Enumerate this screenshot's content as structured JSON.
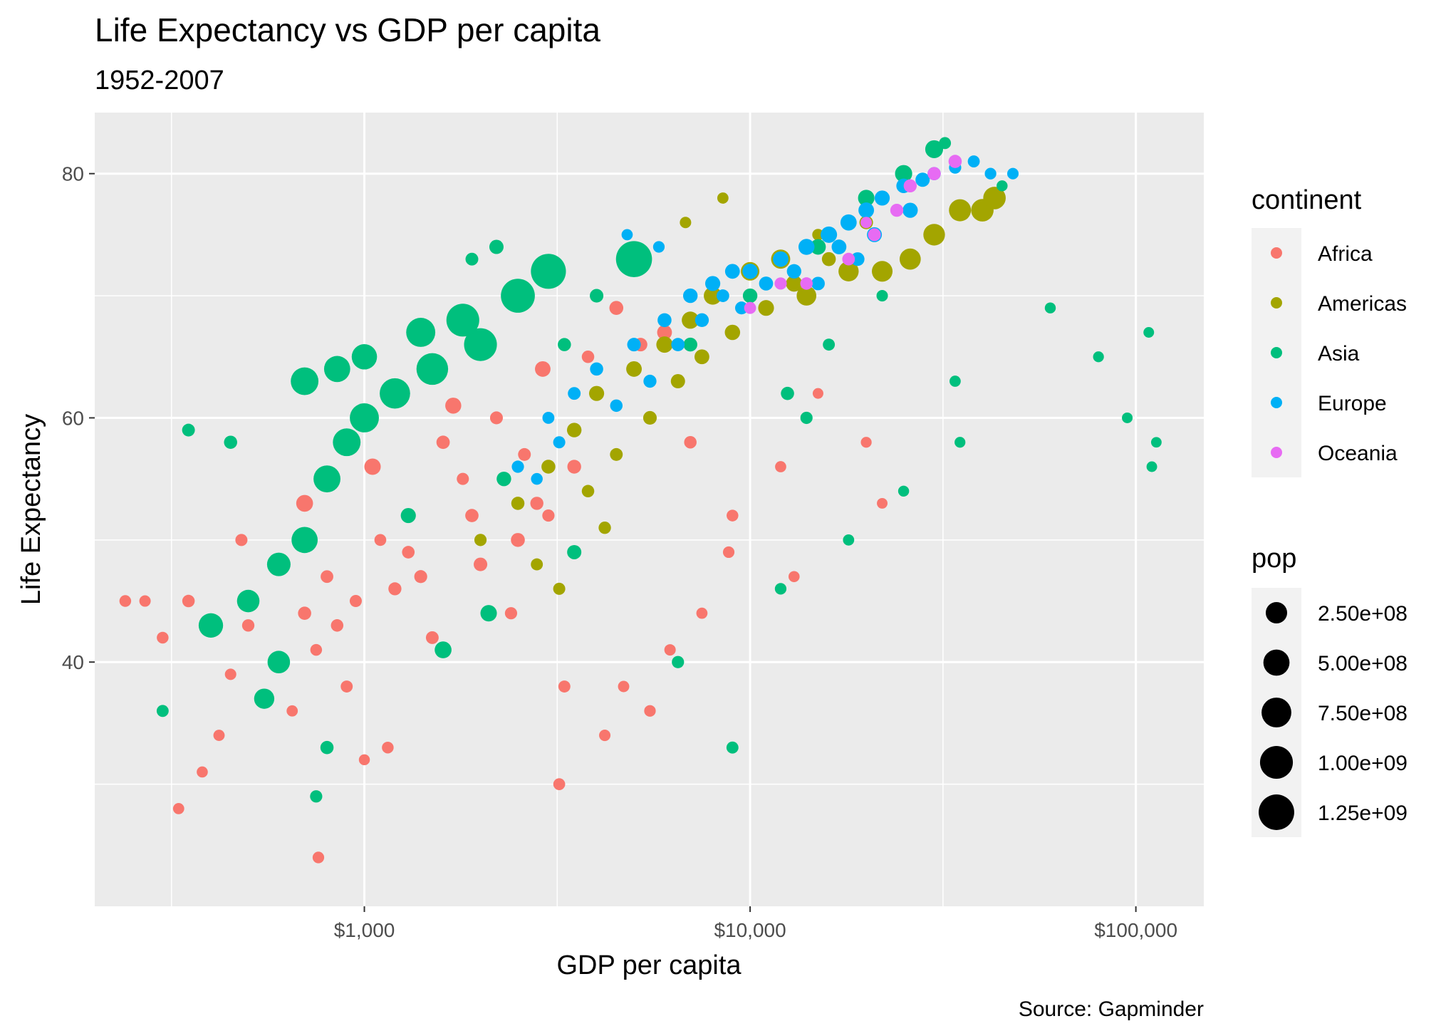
{
  "chart_data": {
    "type": "scatter",
    "title": "Life Expectancy vs GDP per capita",
    "subtitle": "1952-2007",
    "xlabel": "GDP per capita",
    "ylabel": "Life Expectancy",
    "caption": "Source: Gapminder",
    "x_scale": "log10",
    "xlim": [
      200,
      150000
    ],
    "ylim": [
      20,
      85
    ],
    "x_ticks": [
      {
        "value": 1000,
        "label": "$1,000"
      },
      {
        "value": 10000,
        "label": "$10,000"
      },
      {
        "value": 100000,
        "label": "$100,000"
      }
    ],
    "y_ticks": [
      {
        "value": 40,
        "label": "40"
      },
      {
        "value": 60,
        "label": "60"
      },
      {
        "value": 80,
        "label": "80"
      }
    ],
    "grid": true,
    "panel_background": "#ebebeb",
    "legend_position": "right",
    "color_legend": {
      "title": "continent",
      "entries": [
        {
          "name": "Africa",
          "color": "#F8766D"
        },
        {
          "name": "Americas",
          "color": "#A3A500"
        },
        {
          "name": "Asia",
          "color": "#00BF7D"
        },
        {
          "name": "Europe",
          "color": "#00B0F6"
        },
        {
          "name": "Oceania",
          "color": "#E76BF3"
        }
      ]
    },
    "size_legend": {
      "title": "pop",
      "entries": [
        {
          "label": "2.50e+08",
          "value": 250000000
        },
        {
          "label": "5.00e+08",
          "value": 500000000
        },
        {
          "label": "7.50e+08",
          "value": 750000000
        },
        {
          "label": "1.00e+09",
          "value": 1000000000
        },
        {
          "label": "1.25e+09",
          "value": 1250000000
        }
      ]
    },
    "series": [
      {
        "name": "Africa",
        "points": [
          [
            1500,
            42.0,
            15000000
          ],
          [
            900,
            38.0,
            8000000
          ],
          [
            600,
            40.0,
            5000000
          ],
          [
            350,
            45.0,
            12000000
          ],
          [
            300,
            42.0,
            6000000
          ],
          [
            700,
            44.0,
            20000000
          ],
          [
            1200,
            46.0,
            18000000
          ],
          [
            2000,
            48.0,
            25000000
          ],
          [
            2500,
            50.0,
            30000000
          ],
          [
            3000,
            52.0,
            10000000
          ],
          [
            1800,
            55.0,
            9000000
          ],
          [
            1100,
            50.0,
            7000000
          ],
          [
            800,
            47.0,
            14000000
          ],
          [
            500,
            43.0,
            11000000
          ],
          [
            450,
            39.0,
            4000000
          ],
          [
            650,
            36.0,
            3000000
          ],
          [
            1600,
            58.0,
            22000000
          ],
          [
            2200,
            60.0,
            16000000
          ],
          [
            4000,
            62.0,
            35000000
          ],
          [
            5000,
            64.0,
            40000000
          ],
          [
            7000,
            58.0,
            12000000
          ],
          [
            9000,
            52.0,
            6000000
          ],
          [
            12000,
            56.0,
            3000000
          ],
          [
            15000,
            62.0,
            1000000
          ],
          [
            20000,
            58.0,
            1500000
          ],
          [
            3500,
            56.0,
            28000000
          ],
          [
            2800,
            53.0,
            19000000
          ],
          [
            1300,
            49.0,
            13000000
          ],
          [
            950,
            45.0,
            9000000
          ],
          [
            750,
            41.0,
            6000000
          ],
          [
            550,
            37.0,
            5000000
          ],
          [
            420,
            34.0,
            3500000
          ],
          [
            380,
            31.0,
            2500000
          ],
          [
            1000,
            32.0,
            2000000
          ],
          [
            3200,
            30.0,
            7000000
          ],
          [
            4200,
            34.0,
            4000000
          ],
          [
            5500,
            36.0,
            5000000
          ],
          [
            7500,
            44.0,
            3000000
          ],
          [
            8800,
            49.0,
            4500000
          ],
          [
            13000,
            47.0,
            2500000
          ],
          [
            18000,
            50.0,
            1200000
          ],
          [
            22000,
            53.0,
            900000
          ],
          [
            2600,
            57.0,
            15000000
          ],
          [
            1900,
            52.0,
            21000000
          ],
          [
            1400,
            47.0,
            17000000
          ],
          [
            850,
            43.0,
            12000000
          ],
          [
            620,
            48.0,
            10000000
          ],
          [
            480,
            50.0,
            9000000
          ],
          [
            270,
            45.0,
            4000000
          ],
          [
            240,
            45.0,
            6000000
          ],
          [
            3800,
            65.0,
            12000000
          ],
          [
            4500,
            69.0,
            30000000
          ],
          [
            6000,
            67.0,
            45000000
          ],
          [
            5200,
            66.0,
            25000000
          ],
          [
            2900,
            64.0,
            60000000
          ],
          [
            1700,
            61.0,
            70000000
          ],
          [
            1050,
            56.0,
            80000000
          ],
          [
            700,
            53.0,
            90000000
          ],
          [
            2400,
            44.0,
            10000000
          ],
          [
            3300,
            38.0,
            8000000
          ],
          [
            760,
            24.0,
            5000000
          ],
          [
            330,
            28.0,
            3000000
          ],
          [
            1150,
            33.0,
            6000000
          ],
          [
            4700,
            38.0,
            3500000
          ],
          [
            6200,
            41.0,
            4000000
          ]
        ]
      },
      {
        "name": "Americas",
        "points": [
          [
            2000,
            50.0,
            10000000
          ],
          [
            2500,
            53.0,
            20000000
          ],
          [
            3000,
            56.0,
            30000000
          ],
          [
            3500,
            59.0,
            40000000
          ],
          [
            4000,
            62.0,
            50000000
          ],
          [
            5000,
            64.0,
            60000000
          ],
          [
            6000,
            66.0,
            80000000
          ],
          [
            7000,
            68.0,
            100000000
          ],
          [
            8000,
            70.0,
            120000000
          ],
          [
            10000,
            72.0,
            140000000
          ],
          [
            12000,
            73.0,
            160000000
          ],
          [
            14000,
            70.0,
            180000000
          ],
          [
            18000,
            72.0,
            200000000
          ],
          [
            22000,
            72.0,
            220000000
          ],
          [
            26000,
            73.0,
            240000000
          ],
          [
            30000,
            75.0,
            260000000
          ],
          [
            35000,
            77.0,
            280000000
          ],
          [
            40000,
            77.0,
            300000000
          ],
          [
            43000,
            78.0,
            301000000
          ],
          [
            4500,
            57.0,
            15000000
          ],
          [
            3800,
            54.0,
            12000000
          ],
          [
            2800,
            48.0,
            8000000
          ],
          [
            5500,
            60.0,
            25000000
          ],
          [
            6500,
            63.0,
            35000000
          ],
          [
            7500,
            65.0,
            45000000
          ],
          [
            9000,
            67.0,
            55000000
          ],
          [
            11000,
            69.0,
            65000000
          ],
          [
            13000,
            71.0,
            75000000
          ],
          [
            16000,
            73.0,
            30000000
          ],
          [
            20000,
            76.0,
            25000000
          ],
          [
            3200,
            46.0,
            9000000
          ],
          [
            4200,
            51.0,
            11000000
          ],
          [
            6800,
            76.0,
            4000000
          ],
          [
            8500,
            78.0,
            3000000
          ],
          [
            15000,
            75.0,
            5000000
          ]
        ]
      },
      {
        "name": "Asia",
        "points": [
          [
            400,
            43.0,
            400000000
          ],
          [
            500,
            45.0,
            300000000
          ],
          [
            600,
            48.0,
            350000000
          ],
          [
            700,
            50.0,
            500000000
          ],
          [
            800,
            55.0,
            550000000
          ],
          [
            900,
            58.0,
            600000000
          ],
          [
            1000,
            60.0,
            700000000
          ],
          [
            1200,
            62.0,
            800000000
          ],
          [
            1500,
            64.0,
            900000000
          ],
          [
            2000,
            66.0,
            1000000000
          ],
          [
            2500,
            70.0,
            1100000000
          ],
          [
            3000,
            72.0,
            1200000000
          ],
          [
            5000,
            73.0,
            1300000000
          ],
          [
            700,
            63.0,
            600000000
          ],
          [
            850,
            64.0,
            500000000
          ],
          [
            1000,
            65.0,
            450000000
          ],
          [
            1400,
            67.0,
            700000000
          ],
          [
            1800,
            68.0,
            1000000000
          ],
          [
            600,
            40.0,
            300000000
          ],
          [
            550,
            37.0,
            200000000
          ],
          [
            800,
            33.0,
            20000000
          ],
          [
            750,
            29.0,
            10000000
          ],
          [
            300,
            36.0,
            8000000
          ],
          [
            350,
            59.0,
            15000000
          ],
          [
            450,
            58.0,
            20000000
          ],
          [
            1300,
            52.0,
            50000000
          ],
          [
            2300,
            55.0,
            40000000
          ],
          [
            3500,
            49.0,
            35000000
          ],
          [
            6500,
            40.0,
            10000000
          ],
          [
            9000,
            33.0,
            8000000
          ],
          [
            12000,
            46.0,
            5000000
          ],
          [
            18000,
            50.0,
            3000000
          ],
          [
            25000,
            54.0,
            2000000
          ],
          [
            35000,
            58.0,
            1500000
          ],
          [
            95000,
            60.0,
            1000000
          ],
          [
            110000,
            56.0,
            800000
          ],
          [
            113000,
            58.0,
            700000
          ],
          [
            60000,
            69.0,
            2000000
          ],
          [
            80000,
            65.0,
            1500000
          ],
          [
            108000,
            67.0,
            900000
          ],
          [
            30000,
            82.0,
            120000000
          ],
          [
            25000,
            80.0,
            100000000
          ],
          [
            20000,
            78.0,
            80000000
          ],
          [
            15000,
            74.0,
            60000000
          ],
          [
            10000,
            70.0,
            40000000
          ],
          [
            7000,
            66.0,
            30000000
          ],
          [
            4000,
            70.0,
            25000000
          ],
          [
            3300,
            66.0,
            20000000
          ],
          [
            2200,
            74.0,
            35000000
          ],
          [
            1900,
            73.0,
            15000000
          ],
          [
            12500,
            62.0,
            20000000
          ],
          [
            14000,
            60.0,
            10000000
          ],
          [
            16000,
            66.0,
            8000000
          ],
          [
            22000,
            70.0,
            4000000
          ],
          [
            34000,
            63.0,
            3000000
          ],
          [
            32000,
            82.5,
            8000000
          ],
          [
            38000,
            81.0,
            3000000
          ],
          [
            45000,
            79.0,
            2000000
          ],
          [
            1600,
            41.0,
            90000000
          ],
          [
            2100,
            44.0,
            80000000
          ]
        ]
      },
      {
        "name": "Europe",
        "points": [
          [
            2500,
            56.0,
            10000000
          ],
          [
            3000,
            60.0,
            8000000
          ],
          [
            3500,
            62.0,
            15000000
          ],
          [
            4000,
            64.0,
            20000000
          ],
          [
            5000,
            66.0,
            25000000
          ],
          [
            6000,
            68.0,
            30000000
          ],
          [
            7000,
            70.0,
            40000000
          ],
          [
            8000,
            71.0,
            50000000
          ],
          [
            9000,
            72.0,
            45000000
          ],
          [
            10000,
            72.0,
            55000000
          ],
          [
            12000,
            73.0,
            60000000
          ],
          [
            14000,
            74.0,
            70000000
          ],
          [
            16000,
            75.0,
            80000000
          ],
          [
            18000,
            76.0,
            75000000
          ],
          [
            20000,
            77.0,
            60000000
          ],
          [
            22000,
            78.0,
            50000000
          ],
          [
            25000,
            79.0,
            40000000
          ],
          [
            28000,
            79.5,
            35000000
          ],
          [
            30000,
            80.0,
            20000000
          ],
          [
            34000,
            80.5,
            10000000
          ],
          [
            38000,
            81.0,
            8000000
          ],
          [
            42000,
            80.0,
            5000000
          ],
          [
            48000,
            80.0,
            4000000
          ],
          [
            4500,
            61.0,
            12000000
          ],
          [
            5500,
            63.0,
            18000000
          ],
          [
            6500,
            66.0,
            22000000
          ],
          [
            7500,
            68.0,
            28000000
          ],
          [
            11000,
            71.0,
            32000000
          ],
          [
            13000,
            72.0,
            38000000
          ],
          [
            17000,
            74.0,
            44000000
          ],
          [
            21000,
            75.0,
            48000000
          ],
          [
            26000,
            77.0,
            52000000
          ],
          [
            2800,
            55.0,
            6000000
          ],
          [
            3200,
            58.0,
            9000000
          ],
          [
            4800,
            75.0,
            3000000
          ],
          [
            5800,
            74.0,
            5000000
          ],
          [
            8500,
            70.0,
            14000000
          ],
          [
            9500,
            69.0,
            16000000
          ],
          [
            15000,
            71.0,
            24000000
          ],
          [
            19000,
            73.0,
            26000000
          ]
        ]
      },
      {
        "name": "Oceania",
        "points": [
          [
            10000,
            69.0,
            8000000
          ],
          [
            12000,
            71.0,
            10000000
          ],
          [
            14000,
            71.0,
            12000000
          ],
          [
            18000,
            73.0,
            14000000
          ],
          [
            21000,
            75.0,
            16000000
          ],
          [
            24000,
            77.0,
            18000000
          ],
          [
            26000,
            79.0,
            19000000
          ],
          [
            30000,
            80.0,
            20000000
          ],
          [
            34000,
            81.0,
            20500000
          ],
          [
            20000,
            76.0,
            4000000
          ]
        ]
      }
    ]
  }
}
